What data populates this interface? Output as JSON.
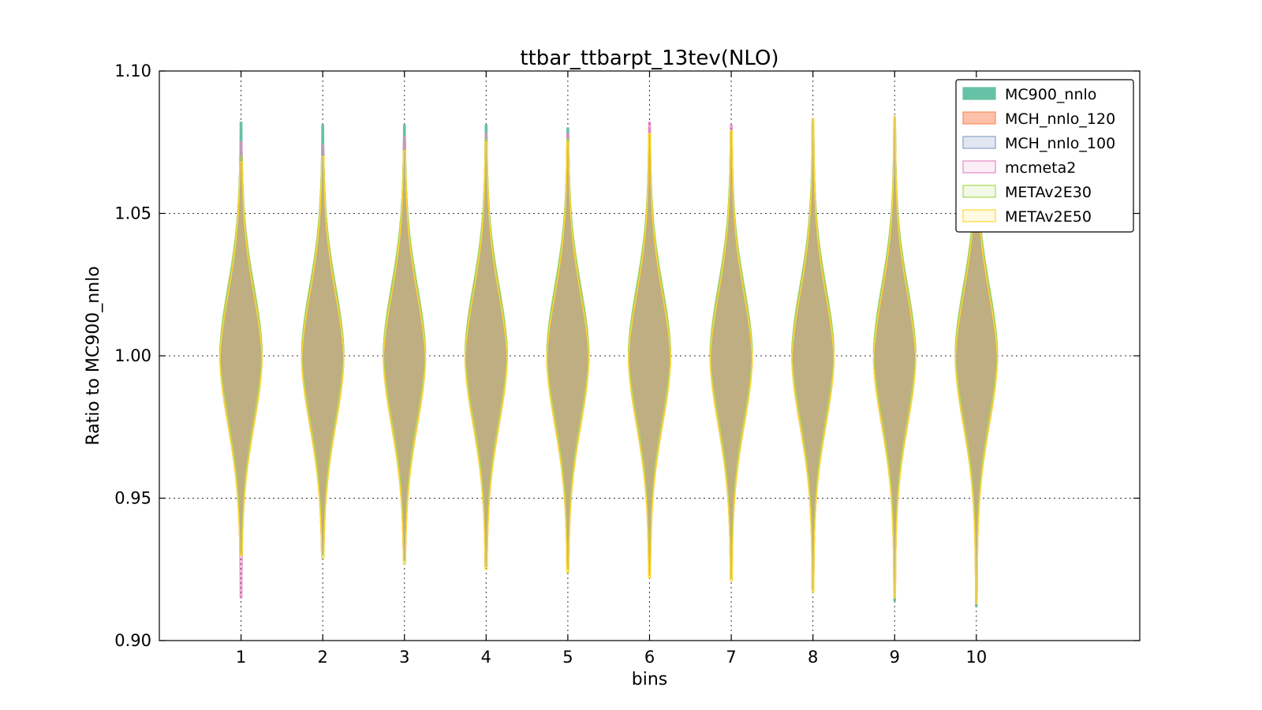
{
  "chart_data": {
    "type": "violin",
    "title": "ttbar_ttbarpt_13tev(NLO)",
    "xlabel": "bins",
    "ylabel": "Ratio to MC900_nnlo",
    "categories": [
      "1",
      "2",
      "3",
      "4",
      "5",
      "6",
      "7",
      "8",
      "9",
      "10"
    ],
    "x": [
      1,
      2,
      3,
      4,
      5,
      6,
      7,
      8,
      9,
      10
    ],
    "xlim": [
      0,
      12
    ],
    "ylim": [
      0.9,
      1.1
    ],
    "yticks": [
      "0.90",
      "0.95",
      "1.00",
      "1.05",
      "1.10"
    ],
    "ytick_values": [
      0.9,
      0.95,
      1.0,
      1.05,
      1.1
    ],
    "grid": true,
    "legend_position": "top-right",
    "series": [
      {
        "name": "MC900_nnlo",
        "color": "#66c2a5",
        "fill": "#66c2a5",
        "fill_opacity": 1.0,
        "min": [
          0.93,
          0.93,
          0.928,
          0.926,
          0.925,
          0.923,
          0.922,
          0.918,
          0.914,
          0.912
        ],
        "max": [
          1.082,
          1.081,
          1.081,
          1.081,
          1.08,
          1.08,
          1.079,
          1.082,
          1.083,
          1.084
        ]
      },
      {
        "name": "MCH_nnlo_120",
        "color": "#fc8d62",
        "fill": "#fc8d62",
        "fill_opacity": 0.55,
        "min": [
          0.93,
          0.931,
          0.929,
          0.926,
          0.925,
          0.923,
          0.922,
          0.918,
          0.916,
          0.914
        ],
        "max": [
          1.07,
          1.07,
          1.075,
          1.076,
          1.076,
          1.078,
          1.079,
          1.083,
          1.084,
          1.083
        ]
      },
      {
        "name": "MCH_nnlo_100",
        "color": "#8da0cb",
        "fill": "#8da0cb",
        "fill_opacity": 0.25,
        "min": [
          0.93,
          0.931,
          0.929,
          0.926,
          0.925,
          0.923,
          0.922,
          0.918,
          0.916,
          0.914
        ],
        "max": [
          1.07,
          1.072,
          1.075,
          1.076,
          1.076,
          1.078,
          1.079,
          1.083,
          1.084,
          1.083
        ]
      },
      {
        "name": "mcmeta2",
        "color": "#e78ac3",
        "fill": "#e78ac3",
        "fill_opacity": 0.15,
        "min": [
          0.915,
          0.931,
          0.929,
          0.926,
          0.925,
          0.923,
          0.922,
          0.918,
          0.916,
          0.914
        ],
        "max": [
          1.075,
          1.074,
          1.077,
          1.078,
          1.078,
          1.082,
          1.081,
          1.083,
          1.084,
          1.083
        ]
      },
      {
        "name": "METAv2E30",
        "color": "#a6d854",
        "fill": "#a6d854",
        "fill_opacity": 0.15,
        "min": [
          0.93,
          0.93,
          0.928,
          0.926,
          0.925,
          0.923,
          0.922,
          0.917,
          0.916,
          0.914
        ],
        "max": [
          1.07,
          1.07,
          1.072,
          1.076,
          1.076,
          1.078,
          1.079,
          1.083,
          1.084,
          1.083
        ]
      },
      {
        "name": "METAv2E50",
        "color": "#ffd92f",
        "fill": "#ffd92f",
        "fill_opacity": 0.15,
        "min": [
          0.93,
          0.929,
          0.927,
          0.925,
          0.924,
          0.922,
          0.921,
          0.917,
          0.915,
          0.913
        ],
        "max": [
          1.068,
          1.07,
          1.072,
          1.075,
          1.075,
          1.078,
          1.079,
          1.083,
          1.084,
          1.083
        ]
      }
    ]
  }
}
